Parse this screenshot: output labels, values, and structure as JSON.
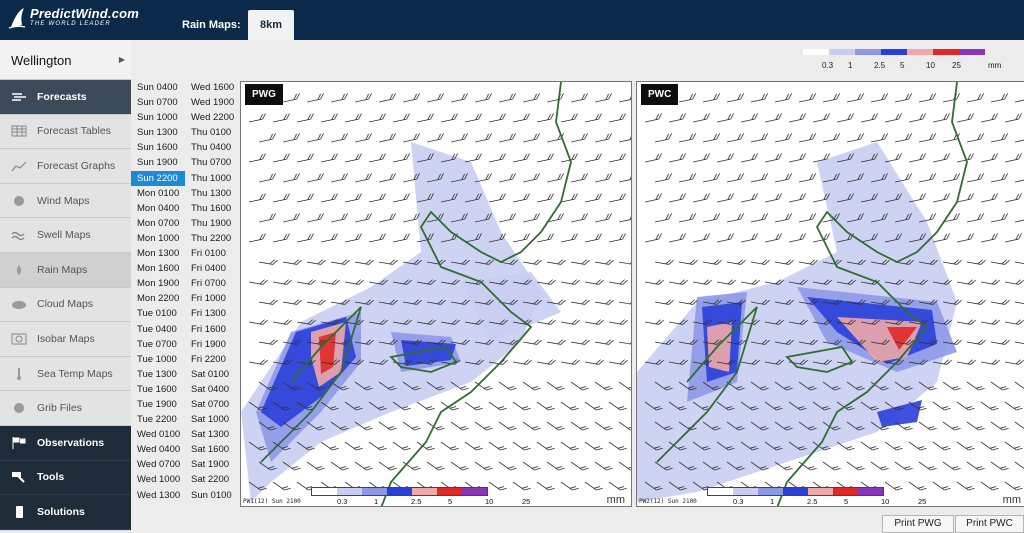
{
  "header": {
    "logo_text": "PredictWind.com",
    "logo_tagline": "THE WORLD LEADER",
    "rain_maps_label": "Rain Maps:",
    "resolution_tab": "8km"
  },
  "sidebar": {
    "location": "Wellington",
    "items": [
      {
        "label": "Forecasts",
        "icon": "forecasts-icon",
        "state": "active"
      },
      {
        "label": "Forecast Tables",
        "icon": "table-icon",
        "state": ""
      },
      {
        "label": "Forecast Graphs",
        "icon": "graph-icon",
        "state": ""
      },
      {
        "label": "Wind Maps",
        "icon": "globe-icon",
        "state": ""
      },
      {
        "label": "Swell Maps",
        "icon": "wave-icon",
        "state": ""
      },
      {
        "label": "Rain Maps",
        "icon": "raindrop-icon",
        "state": "sel"
      },
      {
        "label": "Cloud Maps",
        "icon": "cloud-icon",
        "state": ""
      },
      {
        "label": "Isobar Maps",
        "icon": "isobar-icon",
        "state": ""
      },
      {
        "label": "Sea Temp Maps",
        "icon": "thermometer-icon",
        "state": ""
      },
      {
        "label": "Grib Files",
        "icon": "grib-icon",
        "state": ""
      },
      {
        "label": "Observations",
        "icon": "flags-icon",
        "state": "dark"
      },
      {
        "label": "Tools",
        "icon": "hammer-icon",
        "state": "dark"
      },
      {
        "label": "Solutions",
        "icon": "phone-icon",
        "state": "dark"
      }
    ]
  },
  "times": {
    "col1": [
      "Sun 0400",
      "Sun 0700",
      "Sun 1000",
      "Sun 1300",
      "Sun 1600",
      "Sun 1900",
      "Sun 2200",
      "Mon 0100",
      "Mon 0400",
      "Mon 0700",
      "Mon 1000",
      "Mon 1300",
      "Mon 1600",
      "Mon 1900",
      "Mon 2200",
      "Tue 0100",
      "Tue 0400",
      "Tue 0700",
      "Tue 1000",
      "Tue 1300",
      "Tue 1600",
      "Tue 1900",
      "Tue 2200",
      "Wed 0100",
      "Wed 0400",
      "Wed 0700",
      "Wed 1000",
      "Wed 1300"
    ],
    "col2": [
      "Wed 1600",
      "Wed 1900",
      "Wed 2200",
      "Thu 0100",
      "Thu 0400",
      "Thu 0700",
      "Thu 1000",
      "Thu 1300",
      "Thu 1600",
      "Thu 1900",
      "Thu 2200",
      "Fri 0100",
      "Fri 0400",
      "Fri 0700",
      "Fri 1000",
      "Fri 1300",
      "Fri 1600",
      "Fri 1900",
      "Fri 2200",
      "Sat 0100",
      "Sat 0400",
      "Sat 0700",
      "Sat 1000",
      "Sat 1300",
      "Sat 1600",
      "Sat 1900",
      "Sat 2200",
      "Sun 0100"
    ],
    "selected": "Sun 2200"
  },
  "legend": {
    "colors": [
      "#ffffff",
      "#c9cdf2",
      "#8e98e8",
      "#2a3fd8",
      "#f0a8a8",
      "#e02828",
      "#8a35b8"
    ],
    "ticks": [
      "0.3",
      "1",
      "2.5",
      "5",
      "10",
      "25"
    ],
    "unit": "mm"
  },
  "maps": [
    {
      "label": "PWG",
      "footer": "PW1(12)  Sun 2100"
    },
    {
      "label": "PWC",
      "footer": "PW2(12)  Sun 2100"
    }
  ],
  "buttons": {
    "print_pwg": "Print PWG",
    "print_pwc": "Print PWC"
  }
}
